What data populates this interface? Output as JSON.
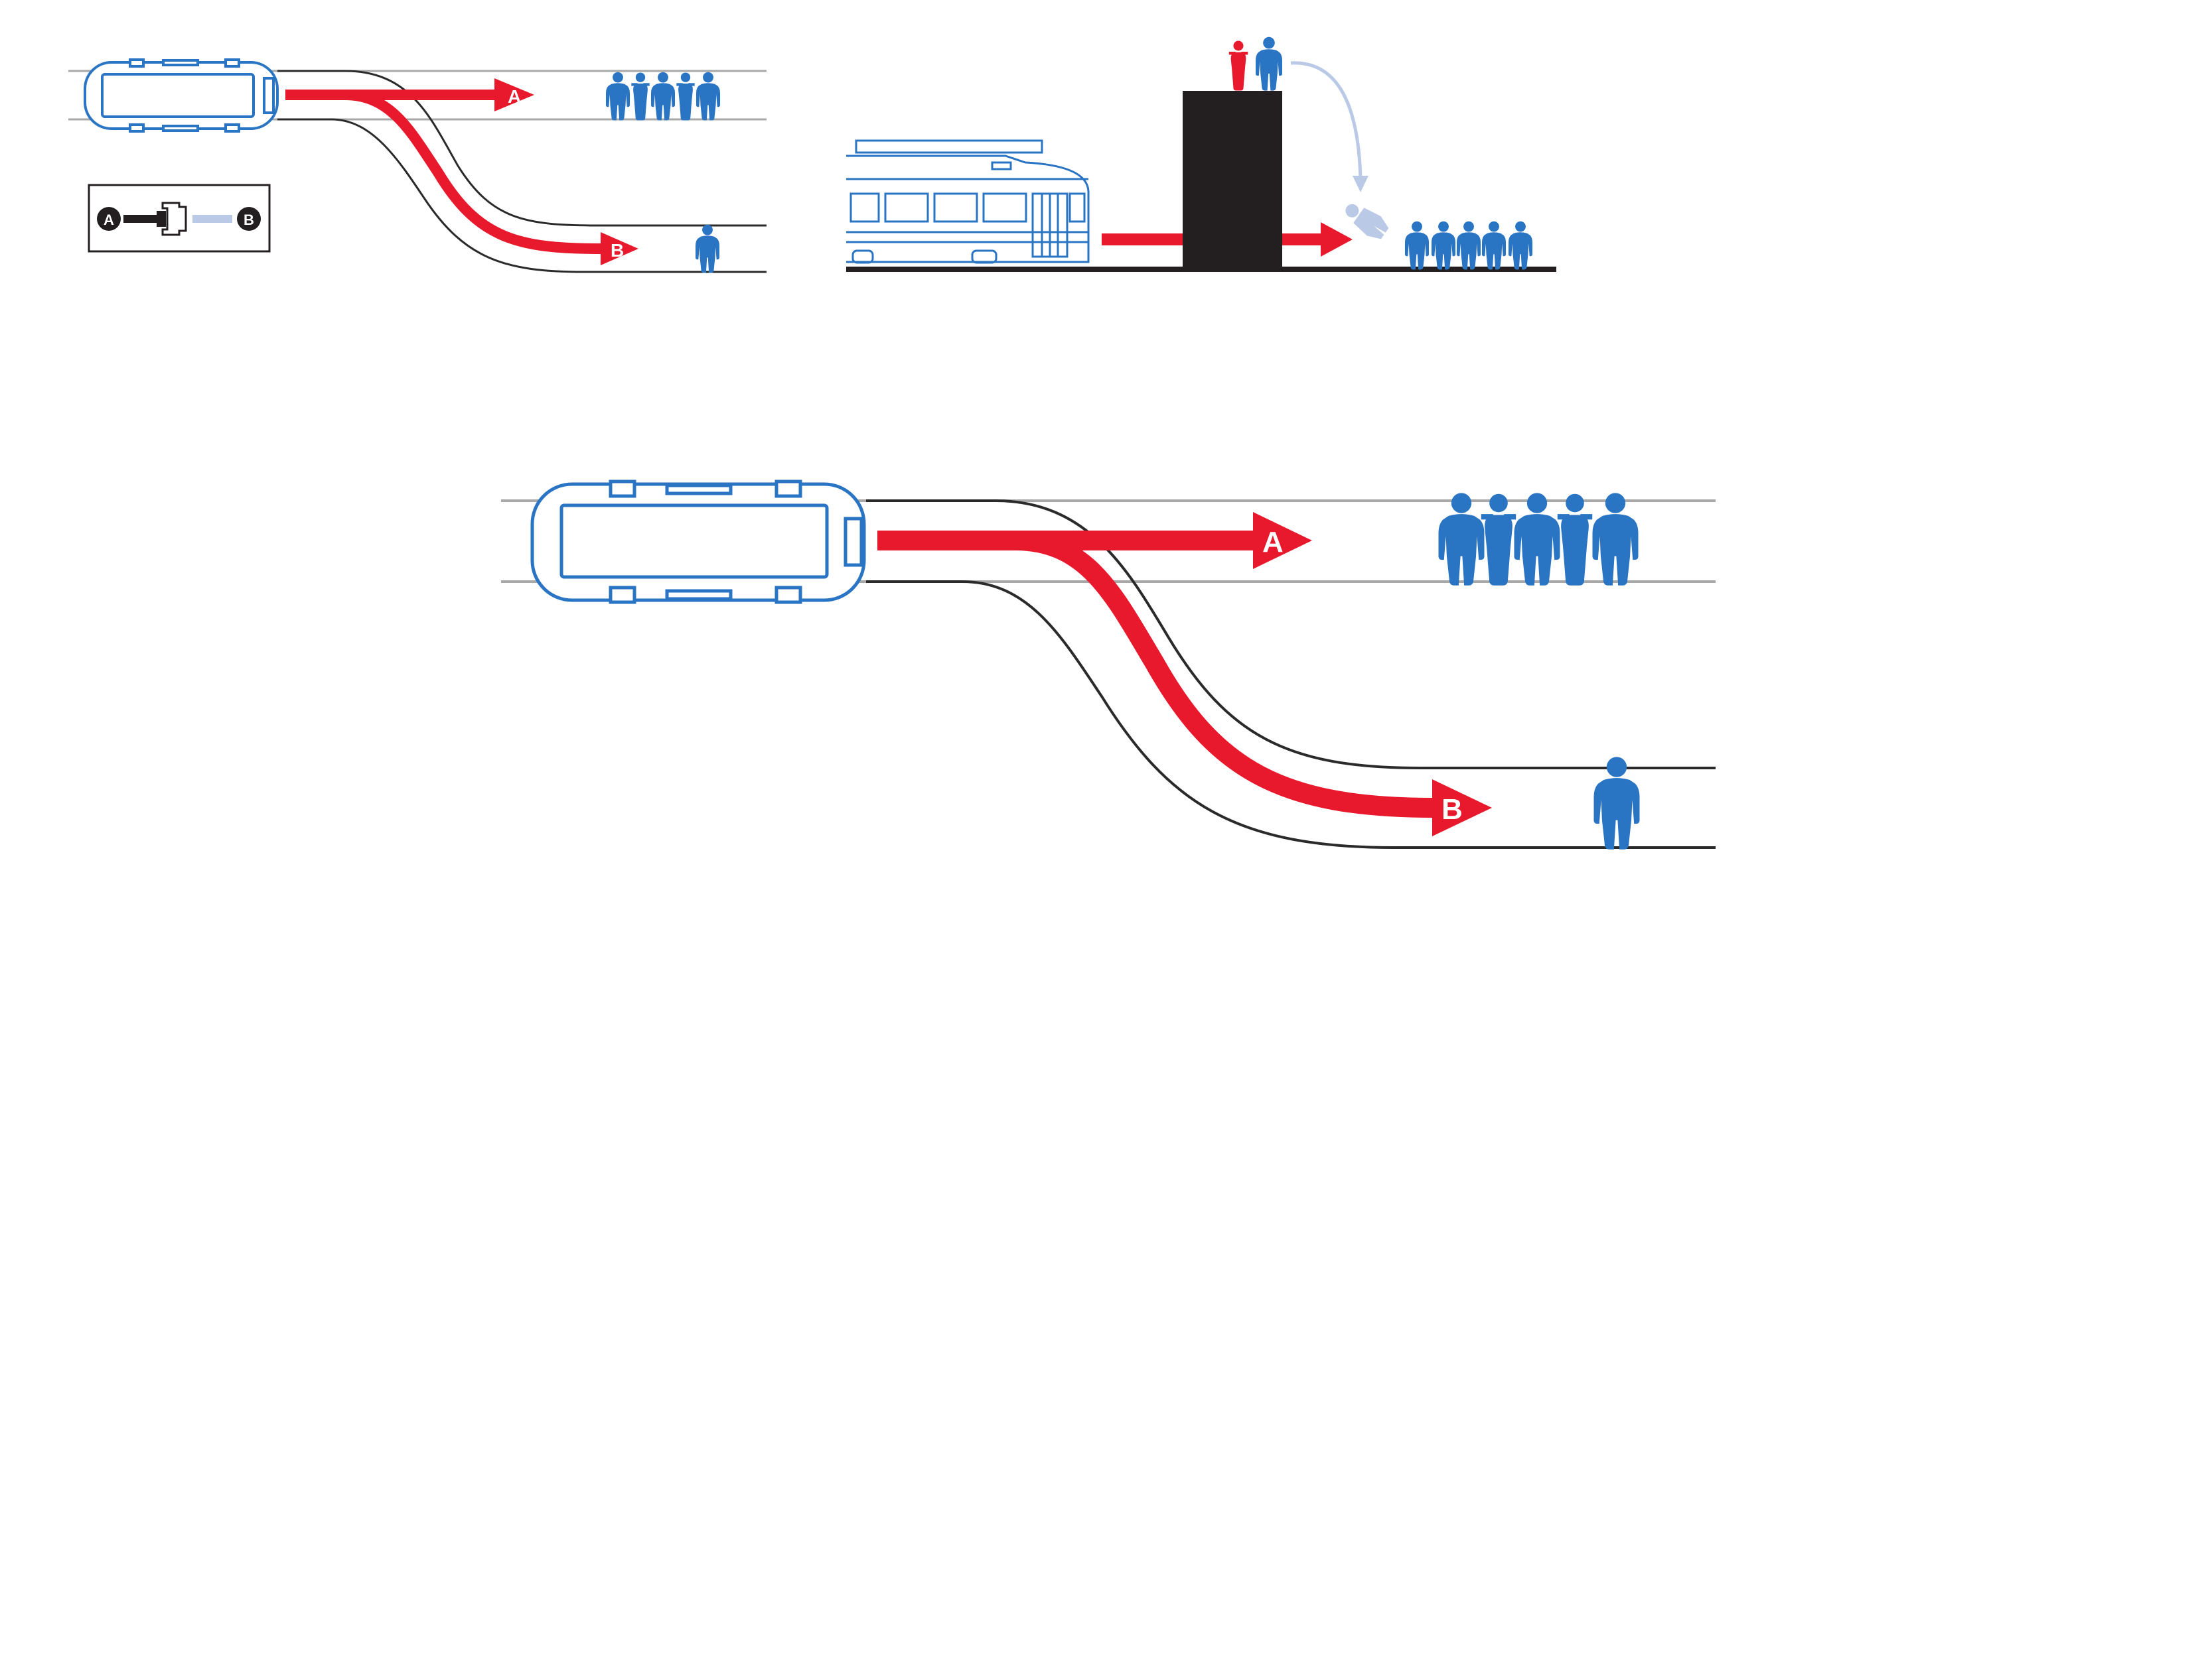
{
  "colors": {
    "track_gray": "#a8a8a8",
    "track_dark": "#2a2a2a",
    "trolley_blue": "#2a74c4",
    "arrow_red": "#e8192c",
    "person_blue": "#2a74c4",
    "person_red": "#e8192c",
    "person_faded": "#b9c9e6",
    "building": "#231f20",
    "ground": "#231f20"
  },
  "labels": {
    "track_a": "A",
    "track_b": "B"
  },
  "panels": [
    {
      "name": "switch-scenario-small",
      "people_on_a": 5,
      "people_on_b": 1,
      "switch_lever": "A-B"
    },
    {
      "name": "footbridge-scenario",
      "people_on_track": 5,
      "people_on_bridge": 2
    },
    {
      "name": "switch-scenario-large",
      "people_on_a": 5,
      "people_on_b": 1
    }
  ],
  "icons": {
    "trolley_top": "trolley-top-view-icon",
    "trolley_side": "trolley-side-view-icon",
    "person": "person-icon",
    "lever": "switch-lever-icon"
  }
}
